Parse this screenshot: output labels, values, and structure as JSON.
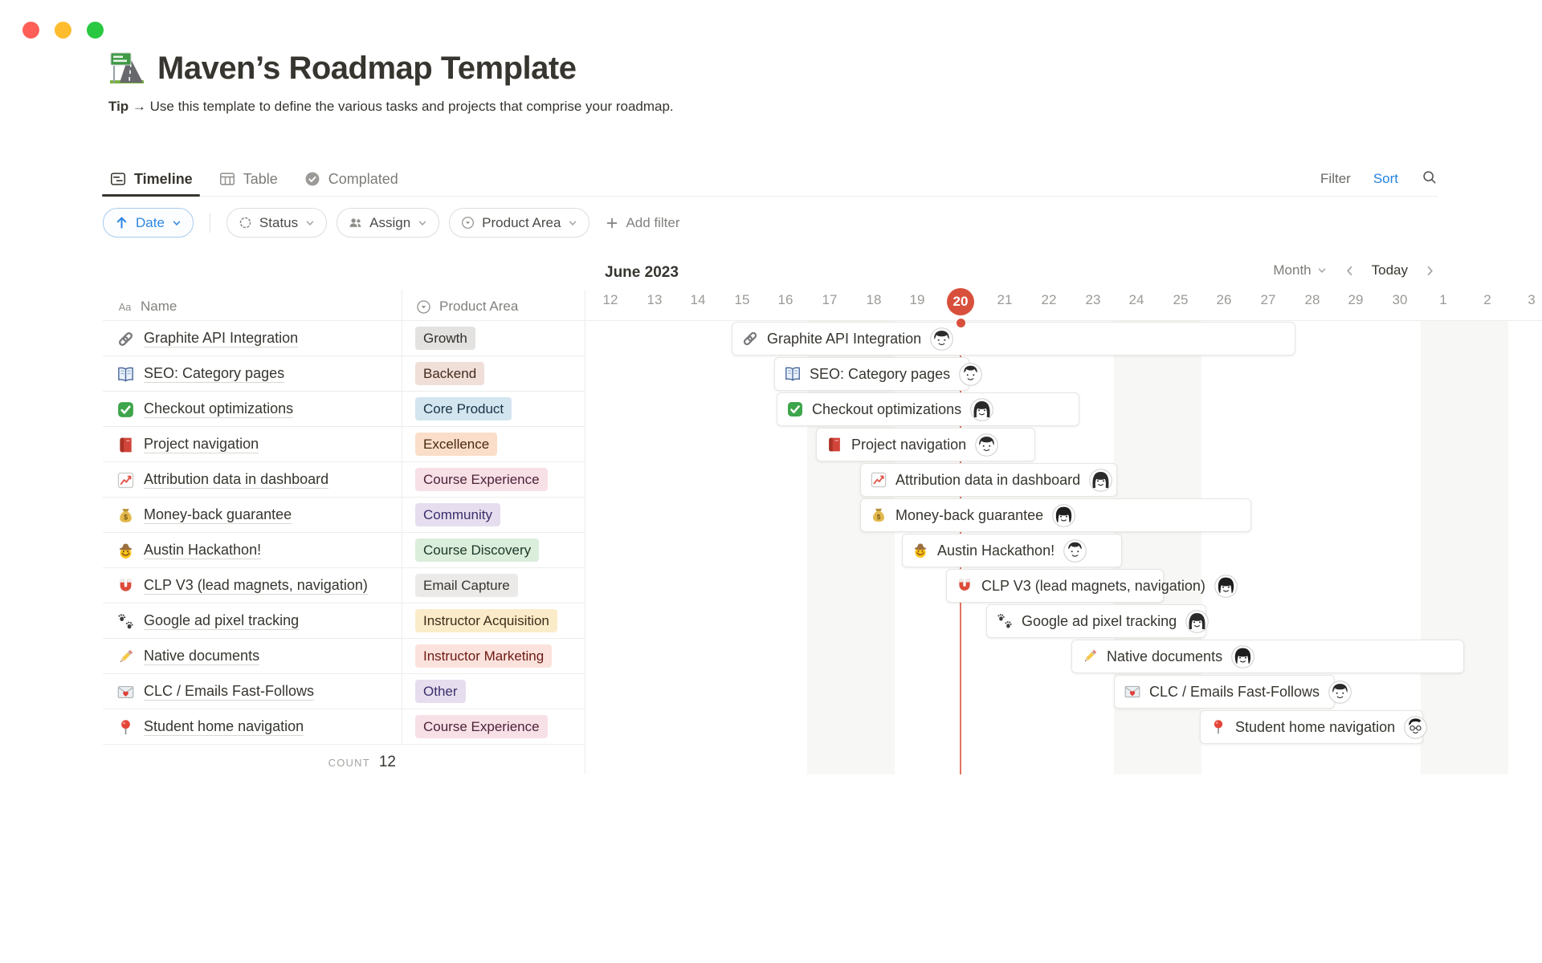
{
  "window": {
    "dots": [
      {
        "name": "close",
        "color": "#FF5F57"
      },
      {
        "name": "minimize",
        "color": "#FEBC2E"
      },
      {
        "name": "zoom",
        "color": "#28C840"
      }
    ]
  },
  "header": {
    "icon": "motorway-icon",
    "title": "Maven’s Roadmap Template",
    "tip_label": "Tip",
    "tip_arrow": "→",
    "tip_text": "Use this template to define the various tasks and projects that comprise your roadmap."
  },
  "tabs": [
    {
      "icon": "timeline-icon",
      "label": "Timeline",
      "active": true
    },
    {
      "icon": "table-icon",
      "label": "Table",
      "active": false
    },
    {
      "icon": "check-circle-icon",
      "label": "Complated",
      "active": false
    }
  ],
  "toolbar": {
    "filter_label": "Filter",
    "sort_label": "Sort"
  },
  "filter_bar": {
    "sort_chip": {
      "icon": "arrow-up-icon",
      "label": "Date"
    },
    "chips": [
      {
        "icon": "status-icon",
        "label": "Status"
      },
      {
        "icon": "assign-icon",
        "label": "Assign"
      },
      {
        "icon": "select-icon",
        "label": "Product Area"
      }
    ],
    "add_filter_label": "Add filter"
  },
  "table": {
    "columns": [
      {
        "icon": "aa-icon",
        "label": "Name"
      },
      {
        "icon": "select-icon",
        "label": "Product Area"
      }
    ],
    "rows": [
      {
        "icon": "link-icon",
        "name": "Graphite API Integration",
        "tag": "Growth",
        "tag_color": "gray"
      },
      {
        "icon": "open-book-icon",
        "name": "SEO: Category pages",
        "tag": "Backend",
        "tag_color": "brown"
      },
      {
        "icon": "check-icon",
        "name": "Checkout optimizations",
        "tag": "Core Product",
        "tag_color": "blue"
      },
      {
        "icon": "red-book-icon",
        "name": "Project navigation",
        "tag": "Excellence",
        "tag_color": "orange"
      },
      {
        "icon": "chart-icon",
        "name": "Attribution data in dashboard",
        "tag": "Course Experience",
        "tag_color": "pink"
      },
      {
        "icon": "money-bag-icon",
        "name": "Money-back guarantee",
        "tag": "Community",
        "tag_color": "purple"
      },
      {
        "icon": "cowboy-icon",
        "name": "Austin Hackathon!",
        "tag": "Course Discovery",
        "tag_color": "green"
      },
      {
        "icon": "magnet-icon",
        "name": "CLP V3 (lead magnets, navigation)",
        "tag": "Email Capture",
        "tag_color": "light_gray"
      },
      {
        "icon": "paws-icon",
        "name": "Google ad pixel tracking",
        "tag": "Instructor Acquisition",
        "tag_color": "yellow"
      },
      {
        "icon": "pencil-icon",
        "name": "Native documents",
        "tag": "Instructor Marketing",
        "tag_color": "red"
      },
      {
        "icon": "love-letter-icon",
        "name": "CLC / Emails Fast-Follows",
        "tag": "Other",
        "tag_color": "purple"
      },
      {
        "icon": "pin-icon",
        "name": "Student home navigation",
        "tag": "Course Experience",
        "tag_color": "pink"
      }
    ],
    "count_label": "COUNT",
    "count_value": "12"
  },
  "timeline": {
    "month_header": "June 2023",
    "zoom_label": "Month",
    "today_label": "Today",
    "days": [
      "12",
      "13",
      "14",
      "15",
      "16",
      "17",
      "18",
      "19",
      "20",
      "21",
      "22",
      "23",
      "24",
      "25",
      "26",
      "27",
      "28",
      "29",
      "30",
      "1",
      "2",
      "3"
    ],
    "today_index": 8,
    "weekend_band_start_indices": [
      5,
      12,
      19
    ],
    "bars": [
      {
        "icon": "link-icon",
        "label": "Graphite API Integration",
        "avatar": "man-dark",
        "start": 3.28,
        "end": 15.9
      },
      {
        "icon": "open-book-icon",
        "label": "SEO: Category pages",
        "avatar": "man-short",
        "start": 4.25,
        "end": 8.46
      },
      {
        "icon": "check-icon",
        "label": "Checkout optimizations",
        "avatar": "woman-long",
        "start": 4.3,
        "end": 10.97
      },
      {
        "icon": "red-book-icon",
        "label": "Project navigation",
        "avatar": "man-dark",
        "start": 5.2,
        "end": 9.96
      },
      {
        "icon": "chart-icon",
        "label": "Attribution data in dashboard",
        "avatar": "woman-long",
        "start": 6.21,
        "end": 11.83
      },
      {
        "icon": "money-bag-icon",
        "label": "Money-back guarantee",
        "avatar": "woman-bob",
        "start": 6.21,
        "end": 14.89
      },
      {
        "icon": "cowboy-icon",
        "label": "Austin Hackathon!",
        "avatar": "man-short",
        "start": 7.16,
        "end": 11.94
      },
      {
        "icon": "magnet-icon",
        "label": "CLP V3 (lead magnets, navigation)",
        "avatar": "woman-bob",
        "start": 8.17,
        "end": 12.9
      },
      {
        "icon": "paws-icon",
        "label": "Google ad pixel tracking",
        "avatar": "woman-long",
        "start": 9.08,
        "end": 13.86
      },
      {
        "icon": "pencil-icon",
        "label": "Native documents",
        "avatar": "woman-bob",
        "start": 11.03,
        "end": 19.74
      },
      {
        "icon": "love-letter-icon",
        "label": "CLC / Emails Fast-Follows",
        "avatar": "man-dark",
        "start": 12.0,
        "end": 16.8
      },
      {
        "icon": "pin-icon",
        "label": "Student home navigation",
        "avatar": "man-glasses",
        "start": 13.95,
        "end": 18.81
      }
    ]
  },
  "colors": {
    "accent_blue": "#2383E2",
    "today_red": "#D8503C",
    "weekend_band": "#F7F7F5",
    "tag_palette": {
      "gray": {
        "bg": "#E3E2E0",
        "text": "#32302C"
      },
      "brown": {
        "bg": "#EFDFD8",
        "text": "#442A1E"
      },
      "blue": {
        "bg": "#D3E5EF",
        "text": "#183347"
      },
      "orange": {
        "bg": "#FADEC9",
        "text": "#49290E"
      },
      "pink": {
        "bg": "#F8E0E7",
        "text": "#4C2337"
      },
      "purple": {
        "bg": "#E6DEEE",
        "text": "#3A2E6B"
      },
      "green": {
        "bg": "#DBEDDB",
        "text": "#1C3829"
      },
      "light_gray": {
        "bg": "#EBEAE8",
        "text": "#37352F"
      },
      "yellow": {
        "bg": "#FBECC9",
        "text": "#402C1B"
      },
      "red": {
        "bg": "#FBE2DD",
        "text": "#6E1A12"
      }
    }
  }
}
